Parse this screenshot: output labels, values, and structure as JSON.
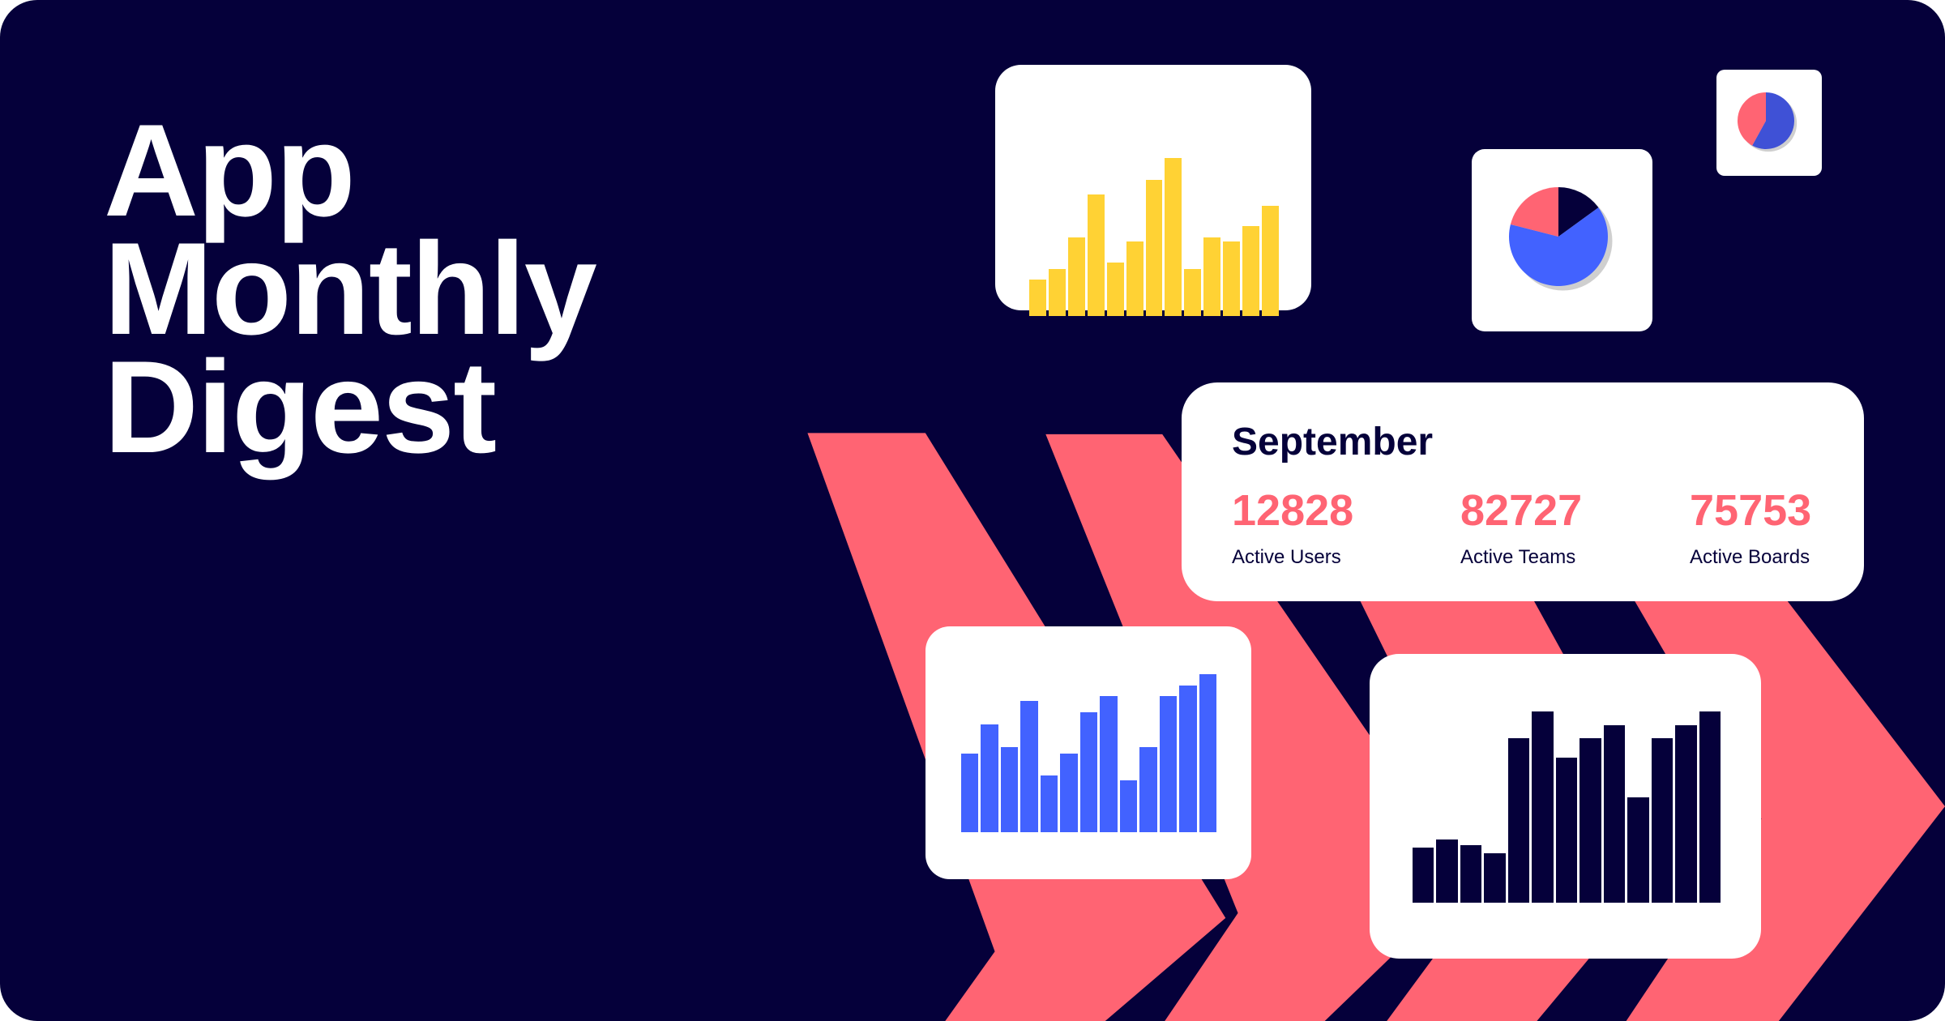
{
  "title": {
    "lines": [
      "App",
      "Monthly",
      "Digest"
    ]
  },
  "colors": {
    "background": "#05003a",
    "chevron": "#ff6473",
    "yellow": "#ffd234",
    "blue": "#4262ff",
    "navy": "#05003a",
    "pink": "#ff6473",
    "small_pie_blue": "#3f51d6"
  },
  "summary": {
    "month": "September",
    "stats": [
      {
        "value": "12828",
        "label": "Active Users"
      },
      {
        "value": "82727",
        "label": "Active Teams"
      },
      {
        "value": "75753",
        "label": "Active Boards"
      }
    ]
  },
  "chart_data": [
    {
      "type": "bar",
      "color": "yellow",
      "values": [
        23,
        30,
        50,
        77,
        34,
        47,
        86,
        100,
        30,
        50,
        47,
        57,
        70
      ]
    },
    {
      "type": "pie",
      "slices": [
        {
          "value": 15,
          "color": "navy"
        },
        {
          "value": 64,
          "color": "blue"
        },
        {
          "value": 21,
          "color": "pink"
        }
      ]
    },
    {
      "type": "pie",
      "slices": [
        {
          "value": 58,
          "color": "small_pie_blue"
        },
        {
          "value": 42,
          "color": "pink"
        }
      ]
    },
    {
      "type": "bar",
      "color": "blue",
      "values": [
        50,
        68,
        54,
        83,
        36,
        50,
        76,
        86,
        33,
        54,
        86,
        93,
        100
      ]
    },
    {
      "type": "bar",
      "color": "navy",
      "values": [
        29,
        33,
        30,
        26,
        86,
        100,
        76,
        86,
        93,
        55,
        86,
        93,
        100
      ]
    }
  ]
}
